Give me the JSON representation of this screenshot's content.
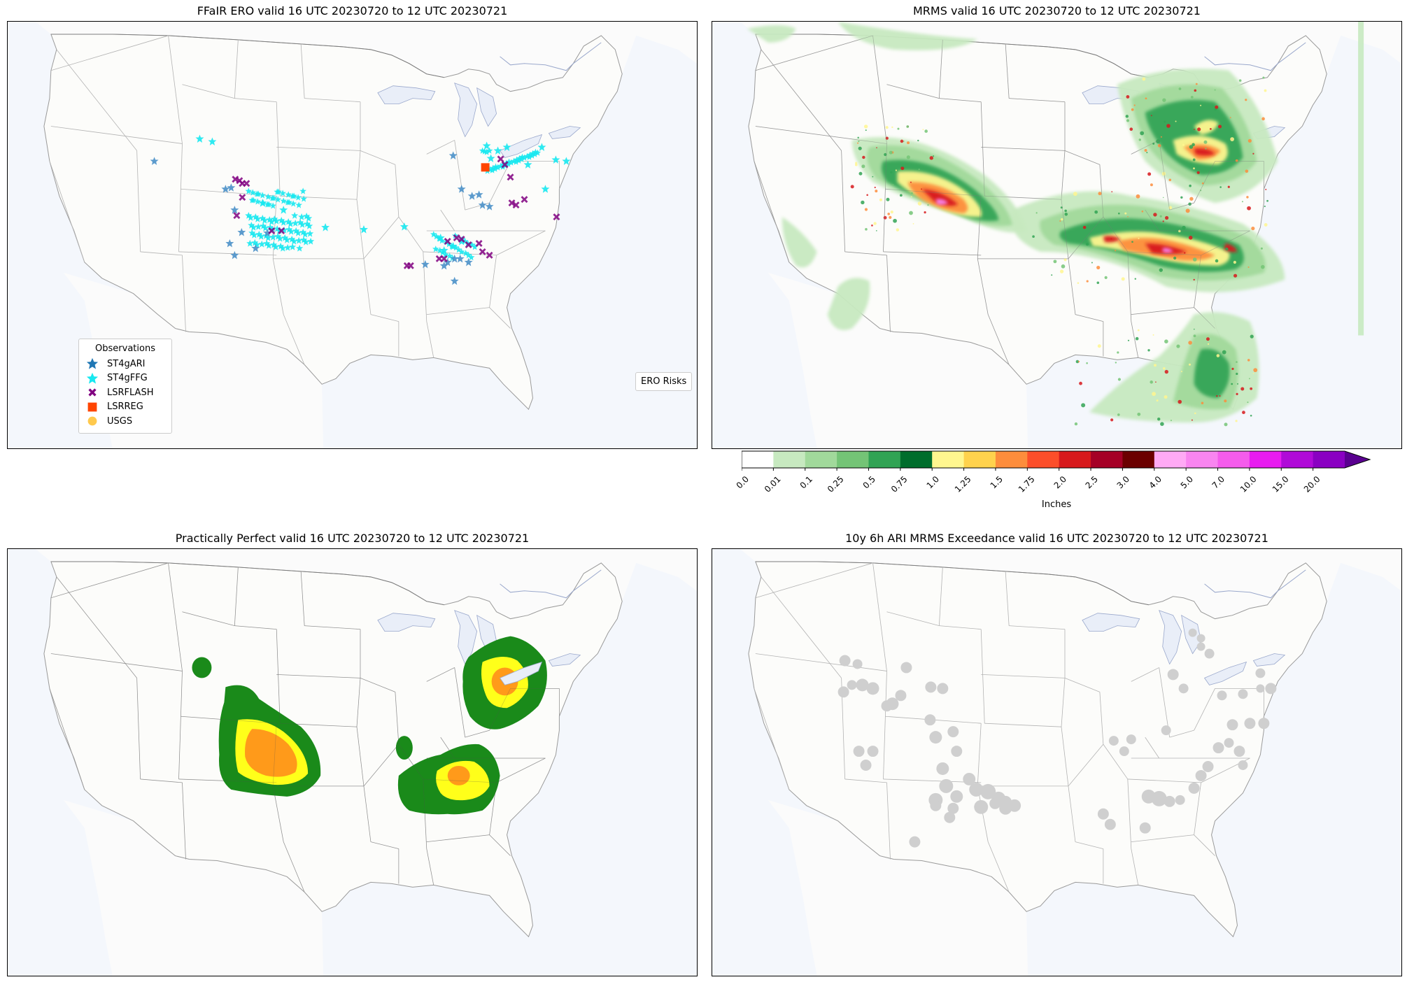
{
  "panels": {
    "ero": {
      "title": "FFaIR ERO valid 16 UTC 20230720 to 12 UTC 20230721"
    },
    "mrms": {
      "title": "MRMS valid 16 UTC 20230720 to 12 UTC 20230721"
    },
    "pp": {
      "title": "Practically Perfect valid 16 UTC 20230720 to 12 UTC 20230721"
    },
    "ari": {
      "title": "10y 6h ARI MRMS Exceedance valid 16 UTC 20230720 to 12 UTC 20230721"
    }
  },
  "observations_legend": {
    "title": "Observations",
    "items": [
      {
        "label": "ST4gARI",
        "color": "#1f77b4",
        "icon": "star-icon"
      },
      {
        "label": "ST4gFFG",
        "color": "#17e8f0",
        "icon": "star-icon"
      },
      {
        "label": "LSRFLASH",
        "color": "#800080",
        "icon": "x-marker-icon"
      },
      {
        "label": "LSRREG",
        "color": "#ff4500",
        "icon": "square-icon"
      },
      {
        "label": "USGS",
        "color": "#ffc94d",
        "icon": "circle-icon"
      }
    ]
  },
  "ero_legend": {
    "title": "ERO Risks"
  },
  "colorbar": {
    "label": "Inches",
    "ticks": [
      "0.0",
      "0.01",
      "0.1",
      "0.25",
      "0.5",
      "0.75",
      "1.0",
      "1.25",
      "1.5",
      "1.75",
      "2.0",
      "2.5",
      "3.0",
      "4.0",
      "5.0",
      "7.0",
      "10.0",
      "15.0",
      "20.0"
    ],
    "colors": [
      "#ffffff",
      "#c7e9c0",
      "#a1d99b",
      "#74c476",
      "#31a354",
      "#006d2c",
      "#fff68f",
      "#ffd24d",
      "#fd8d3c",
      "#fc4e2a",
      "#d7191c",
      "#a50026",
      "#6b0000",
      "#ffaaf5",
      "#f985f0",
      "#f55cec",
      "#e81cf0",
      "#b00ad8",
      "#8a00c2"
    ],
    "extend_color": "#5a0090"
  }
}
